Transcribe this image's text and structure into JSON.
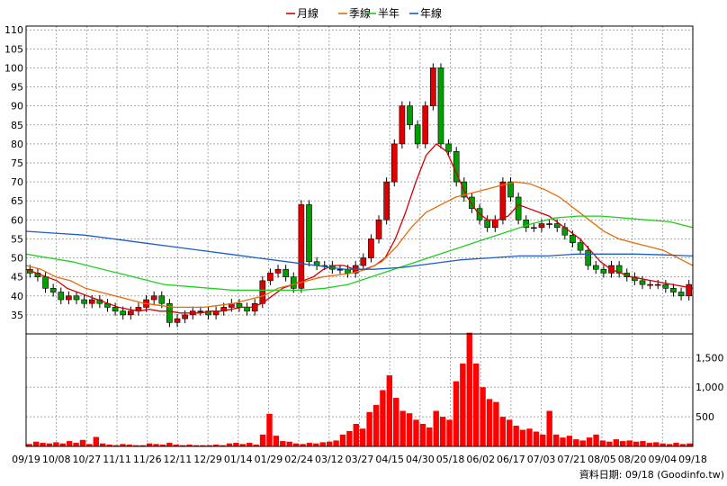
{
  "chart_data": [
    {
      "type": "line",
      "panel": "price",
      "legend": [
        {
          "label": "月線",
          "color": "#d40000"
        },
        {
          "label": "季線",
          "color": "#e46c0a"
        },
        {
          "label": "半年",
          "color": "#1fd01f"
        },
        {
          "label": "年線",
          "color": "#1c5cc8"
        }
      ],
      "ylim": [
        30,
        111
      ],
      "y_ticks": [
        35,
        40,
        45,
        50,
        55,
        60,
        65,
        70,
        75,
        80,
        85,
        90,
        95,
        100,
        105,
        110
      ],
      "x_tick_labels": [
        "09/19",
        "10/08",
        "10/27",
        "11/11",
        "11/26",
        "12/11",
        "12/29",
        "01/14",
        "01/29",
        "02/24",
        "03/12",
        "03/27",
        "04/15",
        "04/30",
        "05/18",
        "06/02",
        "06/17",
        "07/03",
        "07/21",
        "08/05",
        "08/20",
        "09/04",
        "09/18"
      ],
      "candles_close": [
        46,
        45,
        42,
        41,
        39,
        40,
        39,
        38,
        39,
        38,
        37,
        36,
        35,
        36,
        37,
        39,
        40,
        38,
        33,
        34,
        35,
        36,
        36,
        35,
        36,
        37,
        38,
        37,
        36,
        38,
        44,
        46,
        47,
        45,
        42,
        64,
        49,
        48,
        48,
        47,
        47,
        46,
        48,
        50,
        55,
        60,
        70,
        80,
        90,
        85,
        80,
        90,
        100,
        80,
        78,
        70,
        66,
        63,
        60,
        58,
        60,
        70,
        66,
        60,
        58,
        58,
        59,
        59,
        58,
        56,
        54,
        52,
        48,
        47,
        46,
        48,
        46,
        45,
        44,
        43,
        43,
        43,
        42,
        41,
        40,
        43
      ],
      "series": [
        {
          "name": "月線",
          "color": "#d40000",
          "values": [
            47,
            46,
            45,
            44,
            42,
            41,
            40,
            39,
            38,
            37,
            36.5,
            36,
            36.5,
            36,
            36,
            35.5,
            35.5,
            35.5,
            36,
            36,
            36.5,
            37,
            37,
            38,
            40,
            42,
            43,
            44,
            45,
            47,
            48,
            48,
            47,
            47,
            48,
            50,
            55,
            62,
            70,
            77,
            80,
            78,
            72,
            66,
            62,
            60,
            60,
            61,
            64,
            63,
            62,
            61,
            59,
            57,
            55,
            52,
            49,
            47,
            46,
            45,
            44.5,
            44,
            43.5,
            43,
            42.5,
            42
          ]
        },
        {
          "name": "季線",
          "color": "#e46c0a",
          "values": [
            48,
            47,
            45,
            44,
            42,
            41,
            40,
            39,
            38,
            37.5,
            37,
            37,
            37,
            37.5,
            38,
            39,
            40,
            42,
            43,
            44,
            45,
            45.5,
            46,
            47,
            49,
            53,
            58,
            62,
            64,
            66,
            67,
            68,
            69,
            70,
            69.5,
            68,
            66,
            63,
            60,
            57,
            55,
            54,
            53,
            52,
            50,
            48
          ]
        },
        {
          "name": "半年",
          "color": "#1fd01f",
          "values": [
            51,
            50,
            49,
            47.5,
            46,
            44.5,
            43,
            42.5,
            42,
            41.5,
            41.5,
            41.5,
            41.5,
            42,
            43,
            45,
            47,
            49,
            51,
            53,
            55,
            57,
            59,
            60.5,
            61,
            61,
            60.5,
            60,
            59.5,
            58
          ]
        },
        {
          "name": "年線",
          "color": "#1c5cc8",
          "values": [
            57,
            56.5,
            56,
            55,
            54,
            53,
            52,
            51,
            50,
            49,
            48,
            47,
            47,
            47.5,
            48.5,
            49.5,
            50,
            50.5,
            50.5,
            51,
            51,
            51,
            50.8,
            50.5
          ]
        }
      ]
    },
    {
      "type": "bar",
      "panel": "volume",
      "color": "#ff0000",
      "y_ticks": [
        "500",
        "1,000",
        "1,500"
      ],
      "ylim": [
        0,
        1900
      ],
      "values": [
        40,
        80,
        60,
        50,
        70,
        50,
        90,
        60,
        110,
        40,
        160,
        50,
        30,
        20,
        40,
        30,
        20,
        20,
        50,
        40,
        30,
        60,
        30,
        20,
        30,
        20,
        20,
        20,
        30,
        20,
        50,
        60,
        40,
        60,
        30,
        200,
        550,
        180,
        90,
        80,
        50,
        40,
        60,
        50,
        70,
        80,
        100,
        200,
        260,
        380,
        300,
        580,
        700,
        950,
        1200,
        820,
        600,
        560,
        450,
        380,
        320,
        600,
        500,
        450,
        1100,
        1400,
        1920,
        1400,
        1000,
        800,
        750,
        500,
        450,
        350,
        280,
        300,
        250,
        200,
        600,
        200,
        150,
        180,
        120,
        100,
        150,
        200,
        100,
        80,
        120,
        90,
        100,
        80,
        90,
        60,
        70,
        50,
        40,
        60,
        40,
        50
      ]
    }
  ],
  "footer": {
    "source": "資料日期: 09/18 (Goodinfo.tw)"
  }
}
